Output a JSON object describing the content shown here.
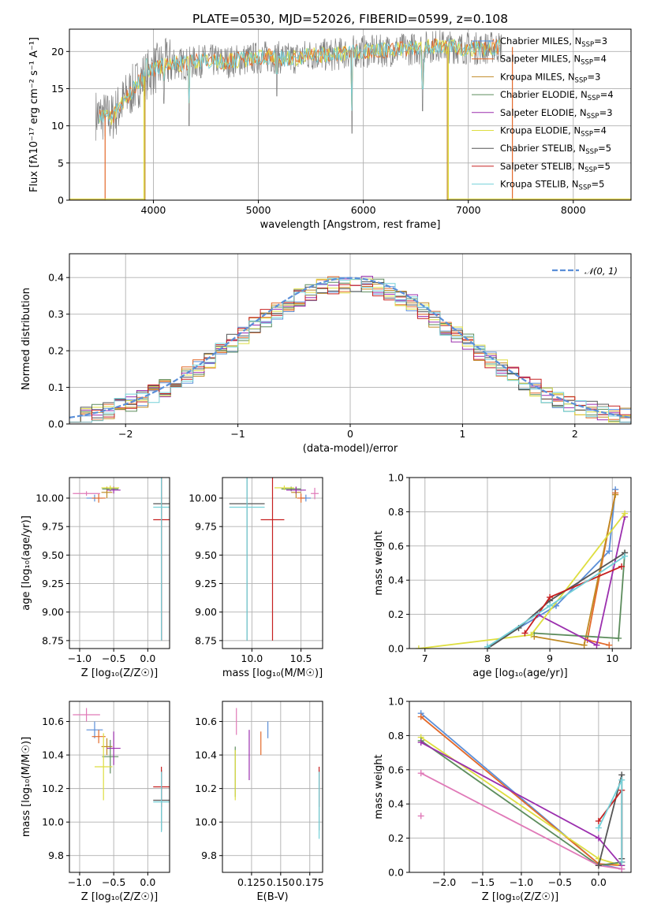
{
  "figure": {
    "title": "PLATE=0530, MJD=52026, FIBERID=0599, z=0.108"
  },
  "series_colors": {
    "Chabrier MILES": "#5b8fd8",
    "Salpeter MILES": "#e36a2b",
    "Kroupa MILES": "#c08a24",
    "Chabrier ELODIE": "#5c8c5c",
    "Salpeter ELODIE": "#9b2fae",
    "Kroupa ELODIE": "#dede40",
    "Chabrier STELIB": "#555555",
    "Salpeter STELIB": "#c62020",
    "Kroupa STELIB": "#74d0d8",
    "data": "#808080",
    "marker_extra": "#e07ab8",
    "normal_curve": "#5b8fd8"
  },
  "chart_data": [
    {
      "id": "spectrum",
      "type": "line",
      "xlabel": "wavelength [Angstrom, rest frame]",
      "ylabel": "Flux [fλ10⁻¹⁷ erg cm⁻² s⁻¹ A⁻¹]",
      "xlim": [
        3200,
        8550
      ],
      "ylim": [
        0,
        23
      ],
      "xticks": [
        4000,
        5000,
        6000,
        7000,
        8000
      ],
      "yticks": [
        0,
        5,
        10,
        15,
        20
      ],
      "legend_position": "top-right",
      "legend": [
        {
          "model": "Chabrier MILES",
          "text": "Chabrier MILES, N_SSP=3"
        },
        {
          "model": "Salpeter MILES",
          "text": "Salpeter MILES, N_SSP=4"
        },
        {
          "model": "Kroupa MILES",
          "text": "Kroupa MILES, N_SSP=3"
        },
        {
          "model": "Chabrier ELODIE",
          "text": "Chabrier ELODIE, N_SSP=4"
        },
        {
          "model": "Salpeter ELODIE",
          "text": "Salpeter ELODIE, N_SSP=3"
        },
        {
          "model": "Kroupa ELODIE",
          "text": "Kroupa ELODIE, N_SSP=4"
        },
        {
          "model": "Chabrier STELIB",
          "text": "Chabrier STELIB, N_SSP=5"
        },
        {
          "model": "Salpeter STELIB",
          "text": "Salpeter STELIB, N_SSP=5"
        },
        {
          "model": "Kroupa STELIB",
          "text": "Kroupa STELIB, N_SSP=5"
        }
      ],
      "continuum": [
        [
          3450,
          11.5
        ],
        [
          3600,
          11
        ],
        [
          3750,
          14
        ],
        [
          3900,
          16.5
        ],
        [
          4000,
          17.5
        ],
        [
          4150,
          18.5
        ],
        [
          4300,
          18.3
        ],
        [
          4500,
          18.8
        ],
        [
          4700,
          18.6
        ],
        [
          4900,
          19
        ],
        [
          5100,
          19.3
        ],
        [
          5300,
          19
        ],
        [
          5500,
          19.6
        ],
        [
          5700,
          19.5
        ],
        [
          5900,
          20
        ],
        [
          6100,
          20
        ],
        [
          6300,
          20.2
        ],
        [
          6500,
          20.4
        ],
        [
          6700,
          20.8
        ],
        [
          6900,
          20.5
        ],
        [
          7100,
          20.4
        ],
        [
          7300,
          20.6
        ]
      ],
      "spikes_down": [
        [
          3933,
          16
        ],
        [
          4101,
          13
        ],
        [
          4340,
          10
        ],
        [
          5176,
          14
        ],
        [
          5892,
          9
        ],
        [
          6563,
          12
        ]
      ],
      "model_edges": [
        {
          "model": "Salpeter MILES",
          "from": 3540,
          "to": 7420
        },
        {
          "model": "Kroupa MILES",
          "from": 3920,
          "to": 6800
        },
        {
          "model": "Kroupa ELODIE",
          "from": 3910,
          "to": 6810
        }
      ]
    },
    {
      "id": "residuals",
      "type": "bar",
      "xlabel": "(data-model)/error",
      "ylabel": "Normed distribution",
      "xlim": [
        -2.5,
        2.5
      ],
      "ylim": [
        0,
        0.465
      ],
      "xticks": [
        -2,
        -1,
        0,
        1,
        2
      ],
      "yticks": [
        0.0,
        0.1,
        0.2,
        0.3,
        0.4
      ],
      "legend_position": "top-right",
      "curve_label": "𝒩(0, 1)",
      "bin_width": 0.1,
      "bin_start": -2.5
    },
    {
      "id": "age_vs_Z",
      "type": "scatter",
      "xlabel": "Z [log₁₀(Z/Z☉)]",
      "ylabel": "age  [log₁₀(age/yr)]",
      "xlim": [
        -1.15,
        0.32
      ],
      "ylim": [
        8.68,
        10.18
      ],
      "xticks": [
        -1.0,
        -0.5,
        0.0
      ],
      "yticks": [
        8.75,
        9.0,
        9.25,
        9.5,
        9.75,
        10.0
      ],
      "points": [
        {
          "model": "Chabrier MILES",
          "x": -0.78,
          "y": 10.0,
          "xerr": 0.12,
          "yerr": 0.03
        },
        {
          "model": "Salpeter MILES",
          "x": -0.72,
          "y": 10.0,
          "xerr": 0.1,
          "yerr": 0.04
        },
        {
          "model": "Kroupa MILES",
          "x": -0.6,
          "y": 10.05,
          "xerr": 0.08,
          "yerr": 0.05
        },
        {
          "model": "Chabrier ELODIE",
          "x": -0.55,
          "y": 10.08,
          "xerr": 0.12,
          "yerr": 0.02
        },
        {
          "model": "Salpeter ELODIE",
          "x": -0.5,
          "y": 10.07,
          "xerr": 0.1,
          "yerr": 0.03
        },
        {
          "model": "Kroupa ELODIE",
          "x": -0.55,
          "y": 10.09,
          "xerr": 0.13,
          "yerr": 0.02
        },
        {
          "model": "Chabrier STELIB",
          "x": 0.2,
          "y": 9.95,
          "xerr": 0.12,
          "yerr": 1.2
        },
        {
          "model": "Salpeter STELIB",
          "x": 0.2,
          "y": 9.81,
          "xerr": 0.12,
          "yerr": 1.06
        },
        {
          "model": "Kroupa STELIB",
          "x": 0.2,
          "y": 9.92,
          "xerr": 0.12,
          "yerr": 1.17
        },
        {
          "model": "extra",
          "x": -0.9,
          "y": 10.04,
          "xerr": 0.2,
          "yerr": 0.02
        }
      ]
    },
    {
      "id": "age_vs_mass",
      "type": "scatter",
      "xlabel": "mass [log₁₀(M/M☉)]",
      "ylabel": "",
      "xlim": [
        9.7,
        10.72
      ],
      "ylim": [
        8.68,
        10.18
      ],
      "xticks": [
        10.0,
        10.5
      ],
      "yticks": [
        8.75,
        9.0,
        9.25,
        9.5,
        9.75,
        10.0
      ],
      "points": [
        {
          "model": "Chabrier MILES",
          "x": 10.55,
          "y": 10.0,
          "xerr": 0.05,
          "yerr": 0.03
        },
        {
          "model": "Salpeter MILES",
          "x": 10.5,
          "y": 10.0,
          "xerr": 0.04,
          "yerr": 0.04
        },
        {
          "model": "Kroupa MILES",
          "x": 10.45,
          "y": 10.05,
          "xerr": 0.05,
          "yerr": 0.05
        },
        {
          "model": "Chabrier ELODIE",
          "x": 10.4,
          "y": 10.08,
          "xerr": 0.1,
          "yerr": 0.02
        },
        {
          "model": "Salpeter ELODIE",
          "x": 10.45,
          "y": 10.07,
          "xerr": 0.1,
          "yerr": 0.03
        },
        {
          "model": "Kroupa ELODIE",
          "x": 10.33,
          "y": 10.09,
          "xerr": 0.1,
          "yerr": 0.02
        },
        {
          "model": "Chabrier STELIB",
          "x": 9.95,
          "y": 9.95,
          "xerr": 0.18,
          "yerr": 1.2
        },
        {
          "model": "Salpeter STELIB",
          "x": 10.21,
          "y": 9.81,
          "xerr": 0.12,
          "yerr": 1.06
        },
        {
          "model": "Kroupa STELIB",
          "x": 9.95,
          "y": 9.92,
          "xerr": 0.18,
          "yerr": 1.17
        },
        {
          "model": "extra",
          "x": 10.64,
          "y": 10.04,
          "xerr": 0.04,
          "yerr": 0.05
        }
      ]
    },
    {
      "id": "weight_vs_age",
      "type": "line",
      "xlabel": "age  [log₁₀(age/yr)]",
      "ylabel": "mass weight",
      "xlim": [
        6.75,
        10.3
      ],
      "ylim": [
        0,
        1.0
      ],
      "xticks": [
        7,
        8,
        9,
        10
      ],
      "yticks": [
        0.0,
        0.2,
        0.4,
        0.6,
        0.8,
        1.0
      ],
      "series": [
        {
          "model": "Chabrier MILES",
          "points": [
            [
              8.0,
              0.01
            ],
            [
              9.1,
              0.25
            ],
            [
              9.95,
              0.57
            ],
            [
              10.05,
              0.93
            ]
          ]
        },
        {
          "model": "Salpeter MILES",
          "points": [
            [
              9.95,
              0.02
            ],
            [
              9.6,
              0.05
            ],
            [
              10.05,
              0.91
            ]
          ]
        },
        {
          "model": "Kroupa MILES",
          "points": [
            [
              8.75,
              0.07
            ],
            [
              9.55,
              0.02
            ],
            [
              10.05,
              0.9
            ]
          ]
        },
        {
          "model": "Chabrier ELODIE",
          "points": [
            [
              8.75,
              0.09
            ],
            [
              10.1,
              0.06
            ],
            [
              10.2,
              0.56
            ]
          ]
        },
        {
          "model": "Salpeter ELODIE",
          "points": [
            [
              8.8,
              0.2
            ],
            [
              9.75,
              0.02
            ],
            [
              10.2,
              0.77
            ]
          ]
        },
        {
          "model": "Kroupa ELODIE",
          "points": [
            [
              6.9,
              0.0
            ],
            [
              8.7,
              0.08
            ],
            [
              10.2,
              0.79
            ]
          ]
        },
        {
          "model": "Chabrier STELIB",
          "points": [
            [
              8.0,
              0.0
            ],
            [
              8.5,
              0.12
            ],
            [
              9.0,
              0.28
            ],
            [
              10.2,
              0.56
            ]
          ]
        },
        {
          "model": "Salpeter STELIB",
          "points": [
            [
              8.6,
              0.09
            ],
            [
              9.0,
              0.3
            ],
            [
              10.15,
              0.48
            ]
          ]
        },
        {
          "model": "Kroupa STELIB",
          "points": [
            [
              8.0,
              0.01
            ],
            [
              9.0,
              0.25
            ],
            [
              10.2,
              0.54
            ]
          ]
        }
      ]
    },
    {
      "id": "mass_vs_Z",
      "type": "scatter",
      "xlabel": "Z [log₁₀(Z/Z☉)]",
      "ylabel": "mass [log₁₀(M/M☉)]",
      "xlim": [
        -1.15,
        0.32
      ],
      "ylim": [
        9.7,
        10.72
      ],
      "xticks": [
        -1.0,
        -0.5,
        0.0
      ],
      "yticks": [
        9.8,
        10.0,
        10.2,
        10.4,
        10.6
      ],
      "points": [
        {
          "model": "Chabrier MILES",
          "x": -0.78,
          "y": 10.55,
          "xerr": 0.12,
          "yerr": 0.05
        },
        {
          "model": "Salpeter MILES",
          "x": -0.72,
          "y": 10.51,
          "xerr": 0.1,
          "yerr": 0.04
        },
        {
          "model": "Kroupa MILES",
          "x": -0.6,
          "y": 10.45,
          "xerr": 0.08,
          "yerr": 0.05
        },
        {
          "model": "Chabrier ELODIE",
          "x": -0.55,
          "y": 10.39,
          "xerr": 0.12,
          "yerr": 0.1
        },
        {
          "model": "Salpeter ELODIE",
          "x": -0.5,
          "y": 10.44,
          "xerr": 0.1,
          "yerr": 0.1
        },
        {
          "model": "Kroupa ELODIE",
          "x": -0.65,
          "y": 10.33,
          "xerr": 0.13,
          "yerr": 0.2
        },
        {
          "model": "Chabrier STELIB",
          "x": 0.2,
          "y": 10.13,
          "xerr": 0.12,
          "yerr": 0.18
        },
        {
          "model": "Salpeter STELIB",
          "x": 0.2,
          "y": 10.21,
          "xerr": 0.12,
          "yerr": 0.12
        },
        {
          "model": "Kroupa STELIB",
          "x": 0.2,
          "y": 10.12,
          "xerr": 0.12,
          "yerr": 0.18
        },
        {
          "model": "extra",
          "x": -0.9,
          "y": 10.64,
          "xerr": 0.2,
          "yerr": 0.04
        }
      ]
    },
    {
      "id": "mass_vs_ebv",
      "type": "scatter",
      "xlabel": "E(B-V)",
      "ylabel": "",
      "xlim": [
        0.1,
        0.186
      ],
      "ylim": [
        9.7,
        10.72
      ],
      "xticks": [
        0.125,
        0.15,
        0.175
      ],
      "yticks": [
        9.8,
        10.0,
        10.2,
        10.4,
        10.6
      ],
      "points": [
        {
          "model": "Chabrier MILES",
          "x": 0.139,
          "y": 10.55,
          "xerr": 0,
          "yerr": 0.05
        },
        {
          "model": "Salpeter MILES",
          "x": 0.133,
          "y": 10.47,
          "xerr": 0,
          "yerr": 0.07
        },
        {
          "model": "Salpeter ELODIE",
          "x": 0.123,
          "y": 10.4,
          "xerr": 0,
          "yerr": 0.15
        },
        {
          "model": "Chabrier ELODIE",
          "x": 0.111,
          "y": 10.3,
          "xerr": 0,
          "yerr": 0.15
        },
        {
          "model": "Kroupa ELODIE",
          "x": 0.111,
          "y": 10.28,
          "xerr": 0,
          "yerr": 0.15
        },
        {
          "model": "Chabrier STELIB",
          "x": 0.183,
          "y": 10.13,
          "xerr": 0,
          "yerr": 0.18
        },
        {
          "model": "Salpeter STELIB",
          "x": 0.183,
          "y": 10.21,
          "xerr": 0,
          "yerr": 0.12
        },
        {
          "model": "Kroupa STELIB",
          "x": 0.183,
          "y": 10.1,
          "xerr": 0,
          "yerr": 0.2
        },
        {
          "model": "extra",
          "x": 0.112,
          "y": 10.6,
          "xerr": 0,
          "yerr": 0.08
        }
      ]
    },
    {
      "id": "weight_vs_Z",
      "type": "line",
      "xlabel": "Z [log₁₀(Z/Z☉)]",
      "ylabel": "mass weight",
      "xlim": [
        -2.45,
        0.42
      ],
      "ylim": [
        0,
        1.0
      ],
      "xticks": [
        -2.0,
        -1.5,
        -1.0,
        -0.5,
        0.0
      ],
      "yticks": [
        0.0,
        0.2,
        0.4,
        0.6,
        0.8,
        1.0
      ],
      "series": [
        {
          "model": "Chabrier MILES",
          "points": [
            [
              -2.3,
              0.93
            ],
            [
              0.0,
              0.05
            ],
            [
              0.3,
              0.02
            ]
          ]
        },
        {
          "model": "Salpeter MILES",
          "points": [
            [
              -2.3,
              0.91
            ],
            [
              0.0,
              0.05
            ],
            [
              0.3,
              0.04
            ]
          ]
        },
        {
          "model": "Kroupa ELODIE",
          "points": [
            [
              -2.3,
              0.79
            ],
            [
              0.0,
              0.08
            ],
            [
              0.3,
              0.04
            ]
          ]
        },
        {
          "model": "Chabrier ELODIE",
          "points": [
            [
              -2.3,
              0.77
            ],
            [
              0.0,
              0.04
            ],
            [
              0.3,
              0.06
            ]
          ]
        },
        {
          "model": "Salpeter ELODIE",
          "points": [
            [
              -2.3,
              0.76
            ],
            [
              0.0,
              0.2
            ],
            [
              0.3,
              0.04
            ]
          ]
        },
        {
          "model": "extra",
          "points": [
            [
              -2.3,
              0.58
            ],
            [
              0.0,
              0.04
            ],
            [
              0.3,
              0.02
            ]
          ]
        },
        {
          "model": "Chabrier STELIB",
          "points": [
            [
              0.0,
              0.04
            ],
            [
              0.3,
              0.57
            ],
            [
              0.3,
              0.08
            ]
          ]
        },
        {
          "model": "Salpeter STELIB",
          "points": [
            [
              0.0,
              0.3
            ],
            [
              0.3,
              0.48
            ],
            [
              0.3,
              0.06
            ]
          ]
        },
        {
          "model": "Kroupa STELIB",
          "points": [
            [
              0.0,
              0.26
            ],
            [
              0.3,
              0.54
            ],
            [
              0.3,
              0.06
            ]
          ]
        }
      ],
      "extra_markers": [
        [
          -2.3,
          0.33
        ]
      ]
    }
  ]
}
